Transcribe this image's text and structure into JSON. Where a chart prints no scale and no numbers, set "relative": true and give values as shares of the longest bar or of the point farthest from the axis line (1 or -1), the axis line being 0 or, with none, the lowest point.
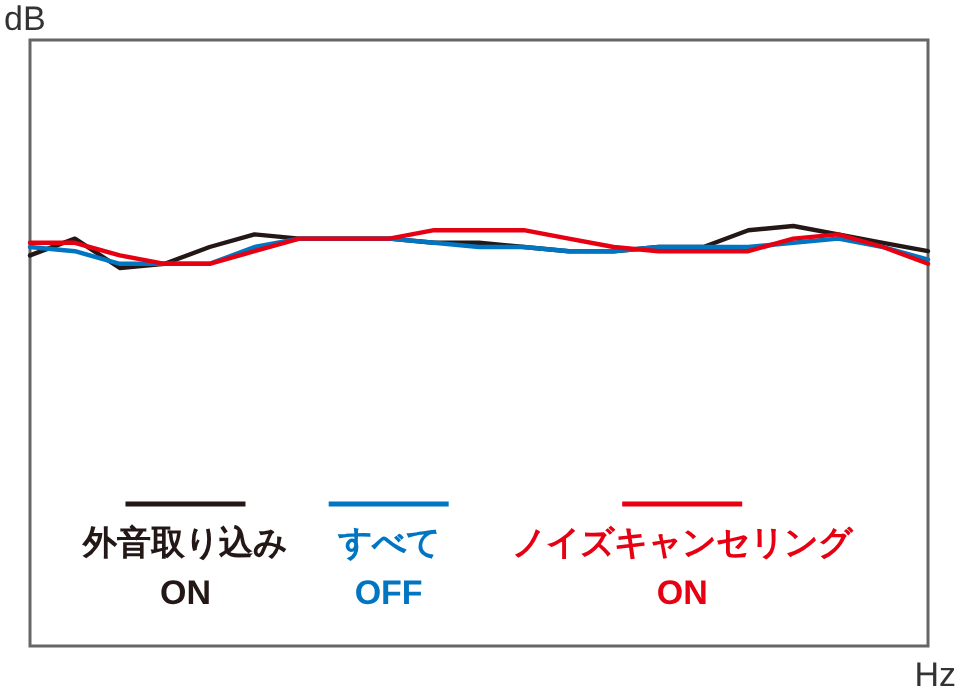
{
  "chart_data": {
    "type": "line",
    "relative": true,
    "annotations": [
      "dB"
    ],
    "xlabel": "Hz",
    "legend": "bottom",
    "grid": false,
    "categories": [
      null,
      null,
      null,
      null,
      null,
      null,
      null,
      null,
      null,
      null,
      null,
      null,
      null,
      null,
      null,
      null,
      null,
      null,
      null,
      null,
      null
    ],
    "series": [
      {
        "name": "外音取り込み\nON",
        "color": "#231815",
        "values": [
          0.93,
          0.97,
          0.9,
          0.91,
          0.95,
          0.98,
          0.97,
          0.97,
          0.97,
          0.96,
          0.96,
          0.95,
          0.94,
          0.94,
          0.95,
          0.95,
          0.99,
          1.0,
          0.98,
          0.96,
          0.94
        ]
      },
      {
        "name": "すべて\nOFF",
        "color": "#0075c2",
        "values": [
          0.95,
          0.94,
          0.91,
          0.91,
          0.91,
          0.95,
          0.97,
          0.97,
          0.97,
          0.96,
          0.95,
          0.95,
          0.94,
          0.94,
          0.95,
          0.95,
          0.95,
          0.96,
          0.97,
          0.95,
          0.92
        ]
      },
      {
        "name": "ノイズキャンセリング\nON",
        "color": "#e60012",
        "values": [
          0.96,
          0.96,
          0.93,
          0.91,
          0.91,
          0.94,
          0.97,
          0.97,
          0.97,
          0.99,
          0.99,
          0.99,
          0.97,
          0.95,
          0.94,
          0.94,
          0.94,
          0.97,
          0.98,
          0.95,
          0.91
        ]
      }
    ]
  }
}
